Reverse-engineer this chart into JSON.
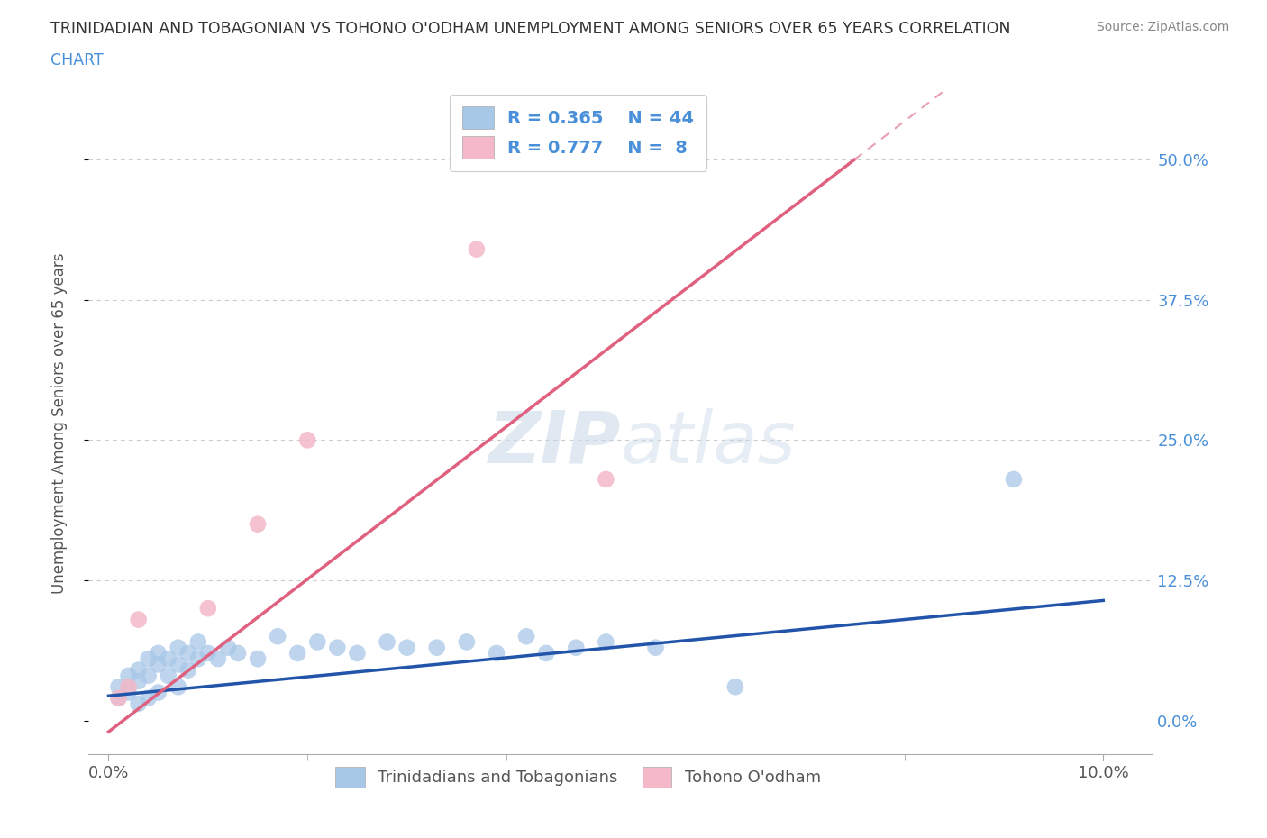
{
  "title_line1": "TRINIDADIAN AND TOBAGONIAN VS TOHONO O'ODHAM UNEMPLOYMENT AMONG SENIORS OVER 65 YEARS CORRELATION",
  "title_line2": "CHART",
  "source": "Source: ZipAtlas.com",
  "ylabel": "Unemployment Among Seniors over 65 years",
  "blue_color": "#a8c8e8",
  "pink_color": "#f4b8c8",
  "blue_line_color": "#2255aa",
  "pink_line_color": "#e06080",
  "pink_dash_color": "#e8a0b0",
  "legend_text_color": "#4a90d9",
  "R_blue": 0.365,
  "N_blue": 44,
  "R_pink": 0.777,
  "N_pink": 8,
  "blue_x": [
    0.001,
    0.001,
    0.002,
    0.002,
    0.003,
    0.003,
    0.003,
    0.004,
    0.004,
    0.004,
    0.005,
    0.005,
    0.005,
    0.006,
    0.006,
    0.007,
    0.007,
    0.007,
    0.008,
    0.008,
    0.009,
    0.009,
    0.01,
    0.011,
    0.012,
    0.013,
    0.015,
    0.017,
    0.019,
    0.021,
    0.023,
    0.025,
    0.028,
    0.03,
    0.033,
    0.036,
    0.039,
    0.042,
    0.044,
    0.047,
    0.05,
    0.055,
    0.063,
    0.091
  ],
  "blue_y": [
    0.02,
    0.03,
    0.025,
    0.04,
    0.015,
    0.035,
    0.045,
    0.02,
    0.04,
    0.055,
    0.025,
    0.05,
    0.06,
    0.04,
    0.055,
    0.03,
    0.05,
    0.065,
    0.045,
    0.06,
    0.055,
    0.07,
    0.06,
    0.055,
    0.065,
    0.06,
    0.055,
    0.075,
    0.06,
    0.07,
    0.065,
    0.06,
    0.07,
    0.065,
    0.065,
    0.07,
    0.06,
    0.075,
    0.06,
    0.065,
    0.07,
    0.065,
    0.03,
    0.215
  ],
  "pink_x": [
    0.001,
    0.002,
    0.003,
    0.01,
    0.015,
    0.02,
    0.037,
    0.05
  ],
  "pink_y": [
    0.02,
    0.03,
    0.09,
    0.1,
    0.175,
    0.25,
    0.42,
    0.215
  ],
  "pink_line_x0": 0.0,
  "pink_line_y0": -0.01,
  "pink_line_x1": 0.075,
  "pink_line_y1": 0.5,
  "blue_line_x0": 0.0,
  "blue_line_y0": 0.022,
  "blue_line_x1": 0.1,
  "blue_line_y1": 0.107,
  "ylim_min": -0.03,
  "ylim_max": 0.56,
  "xlim_min": -0.002,
  "xlim_max": 0.105
}
